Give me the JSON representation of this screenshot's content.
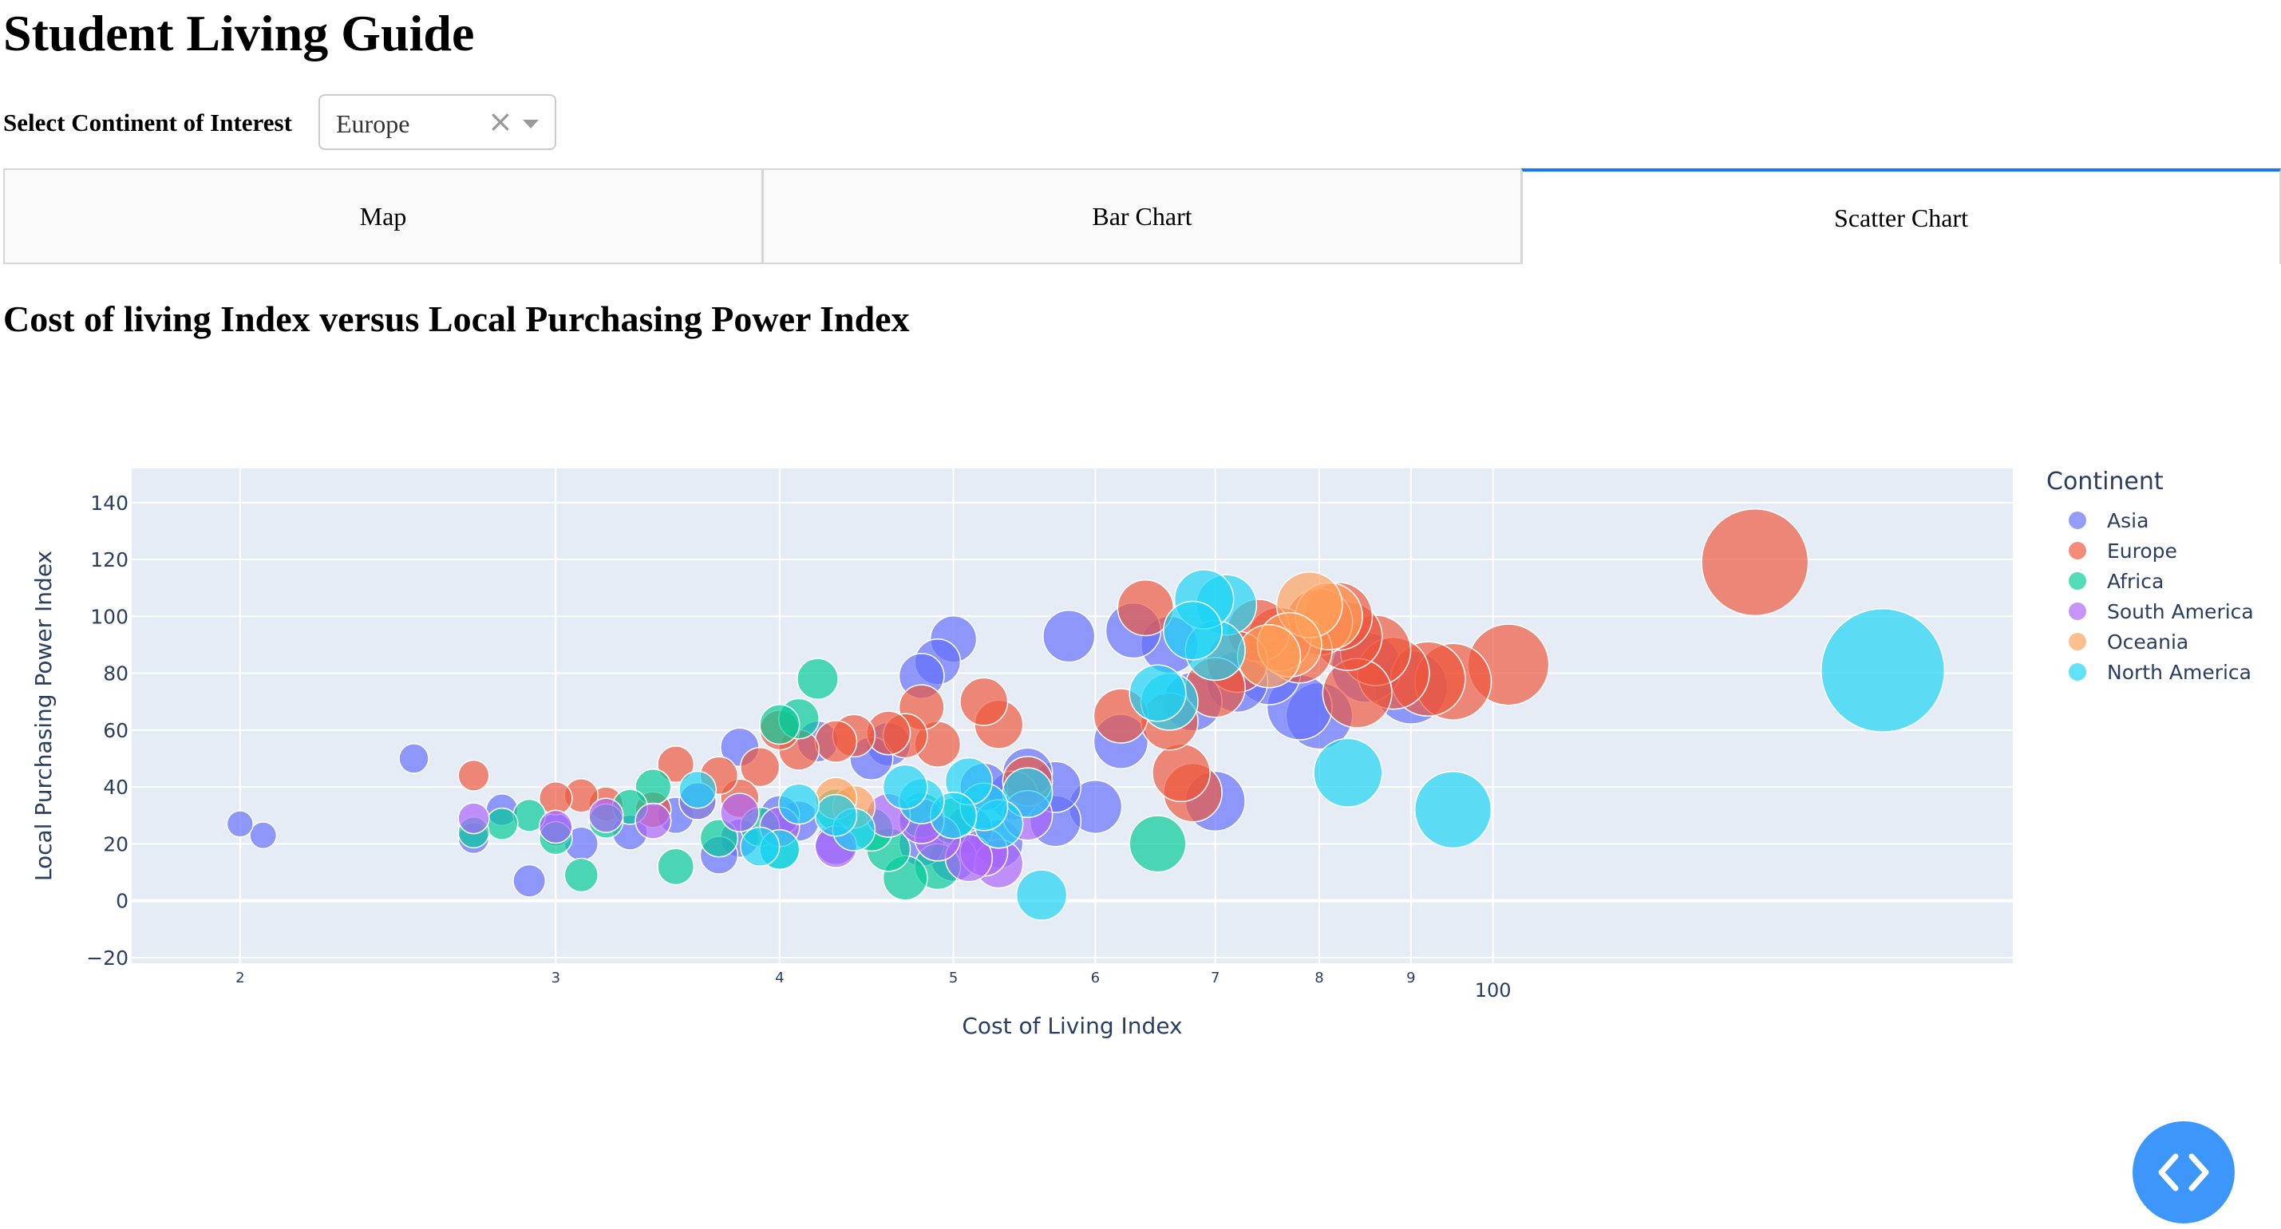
{
  "app": {
    "title": "Student Living Guide",
    "filter_label": "Select Continent of Interest",
    "continent_selected": "Europe",
    "clear_symbol": "×"
  },
  "tabs": [
    {
      "label": "Map",
      "selected": false
    },
    {
      "label": "Bar Chart",
      "selected": false
    },
    {
      "label": "Scatter Chart",
      "selected": true
    }
  ],
  "chart_heading": "Cost of living Index versus Local Purchasing Power Index",
  "icons": {
    "chevron": "chevron-down-icon",
    "clear": "clear-icon",
    "code": "code-brackets-icon"
  },
  "chart_data": {
    "type": "scatter",
    "title": "",
    "xlabel": "Cost of Living Index",
    "ylabel": "Local Purchasing Power Index",
    "x_scale": "log",
    "xlim": [
      17.4,
      195
    ],
    "ylim": [
      -22,
      152
    ],
    "x_ticks": [
      20,
      30,
      40,
      50,
      60,
      70,
      80,
      90,
      100
    ],
    "x_tick_labels": [
      "2",
      "3",
      "4",
      "5",
      "6",
      "7",
      "8",
      "9",
      "100"
    ],
    "y_ticks": [
      -20,
      0,
      20,
      40,
      60,
      80,
      100,
      120,
      140
    ],
    "y_tick_labels": [
      "−20",
      "0",
      "20",
      "40",
      "60",
      "80",
      "100",
      "120",
      "140"
    ],
    "grid": true,
    "legend": {
      "title": "Continent",
      "placement": "right"
    },
    "size_encodes": "Cost of Living Index",
    "series": [
      {
        "name": "Asia",
        "color": "#636efa",
        "points": [
          [
            20,
            27
          ],
          [
            20.6,
            23
          ],
          [
            25,
            50
          ],
          [
            28,
            32
          ],
          [
            29,
            7
          ],
          [
            27,
            22
          ],
          [
            30,
            25
          ],
          [
            31,
            20
          ],
          [
            33,
            24
          ],
          [
            35,
            30
          ],
          [
            37,
            16
          ],
          [
            38,
            54
          ],
          [
            38,
            22
          ],
          [
            40,
            30
          ],
          [
            41,
            28
          ],
          [
            42,
            56
          ],
          [
            43,
            20
          ],
          [
            45,
            50
          ],
          [
            46,
            55
          ],
          [
            48,
            79
          ],
          [
            48,
            20
          ],
          [
            49,
            84
          ],
          [
            50,
            92
          ],
          [
            50,
            15
          ],
          [
            51,
            25
          ],
          [
            52,
            40
          ],
          [
            53,
            20
          ],
          [
            54,
            37
          ],
          [
            55,
            45
          ],
          [
            57,
            28
          ],
          [
            58,
            93
          ],
          [
            60,
            33
          ],
          [
            62,
            56
          ],
          [
            63,
            95
          ],
          [
            66,
            90
          ],
          [
            68,
            70
          ],
          [
            70,
            35
          ],
          [
            72,
            77
          ],
          [
            75,
            80
          ],
          [
            78,
            68
          ],
          [
            80,
            65
          ],
          [
            85,
            82
          ],
          [
            90,
            75
          ],
          [
            57,
            40
          ]
        ]
      },
      {
        "name": "Europe",
        "color": "#ef553b",
        "points": [
          [
            27,
            44
          ],
          [
            30,
            36
          ],
          [
            31,
            37
          ],
          [
            32,
            34
          ],
          [
            34,
            32
          ],
          [
            35,
            48
          ],
          [
            37,
            44
          ],
          [
            38,
            36
          ],
          [
            39,
            47
          ],
          [
            40,
            60
          ],
          [
            41,
            53
          ],
          [
            43,
            56
          ],
          [
            44,
            58
          ],
          [
            46,
            59
          ],
          [
            47,
            58
          ],
          [
            48,
            68
          ],
          [
            49,
            55
          ],
          [
            52,
            70
          ],
          [
            53,
            62
          ],
          [
            55,
            42
          ],
          [
            62,
            65
          ],
          [
            64,
            103
          ],
          [
            66,
            63
          ],
          [
            67,
            45
          ],
          [
            68,
            38
          ],
          [
            72,
            84
          ],
          [
            74,
            95
          ],
          [
            76,
            92
          ],
          [
            78,
            88
          ],
          [
            80,
            98
          ],
          [
            82,
            100
          ],
          [
            84,
            73
          ],
          [
            86,
            88
          ],
          [
            88,
            80
          ],
          [
            92,
            78
          ],
          [
            95,
            77
          ],
          [
            102,
            83
          ],
          [
            140,
            119
          ],
          [
            83,
            93
          ],
          [
            70,
            75
          ]
        ]
      },
      {
        "name": "Africa",
        "color": "#00cc96",
        "points": [
          [
            27,
            24
          ],
          [
            28,
            27
          ],
          [
            29,
            30
          ],
          [
            30,
            22
          ],
          [
            31,
            9
          ],
          [
            32,
            28
          ],
          [
            33,
            33
          ],
          [
            34,
            40
          ],
          [
            35,
            12
          ],
          [
            36,
            35
          ],
          [
            37,
            22
          ],
          [
            39,
            26
          ],
          [
            40,
            18
          ],
          [
            41,
            64
          ],
          [
            42,
            78
          ],
          [
            43,
            32
          ],
          [
            45,
            25
          ],
          [
            46,
            18
          ],
          [
            47,
            8
          ],
          [
            48,
            30
          ],
          [
            49,
            12
          ],
          [
            50,
            28
          ],
          [
            65,
            20
          ],
          [
            40,
            62
          ]
        ]
      },
      {
        "name": "South America",
        "color": "#ab63fa",
        "points": [
          [
            27,
            29
          ],
          [
            30,
            26
          ],
          [
            32,
            30
          ],
          [
            34,
            28
          ],
          [
            36,
            35
          ],
          [
            38,
            31
          ],
          [
            40,
            26
          ],
          [
            43,
            19
          ],
          [
            46,
            30
          ],
          [
            49,
            22
          ],
          [
            51,
            15
          ],
          [
            52,
            17
          ],
          [
            53,
            13
          ],
          [
            55,
            30
          ],
          [
            48,
            28
          ]
        ]
      },
      {
        "name": "Oceania",
        "color": "#ffa15a",
        "points": [
          [
            43,
            36
          ],
          [
            44,
            33
          ],
          [
            75,
            86
          ],
          [
            77,
            90
          ],
          [
            79,
            104
          ],
          [
            81,
            100
          ]
        ]
      },
      {
        "name": "North America",
        "color": "#19d3f3",
        "points": [
          [
            36,
            39
          ],
          [
            39,
            19
          ],
          [
            40,
            18
          ],
          [
            41,
            34
          ],
          [
            43,
            30
          ],
          [
            44,
            25
          ],
          [
            47,
            40
          ],
          [
            48,
            35
          ],
          [
            50,
            30
          ],
          [
            51,
            42
          ],
          [
            52,
            33
          ],
          [
            53,
            27
          ],
          [
            55,
            38
          ],
          [
            56,
            2
          ],
          [
            65,
            73
          ],
          [
            66,
            70
          ],
          [
            68,
            95
          ],
          [
            69,
            106
          ],
          [
            70,
            88
          ],
          [
            71,
            104
          ],
          [
            83,
            45
          ],
          [
            95,
            32
          ],
          [
            165,
            81
          ]
        ]
      }
    ]
  }
}
